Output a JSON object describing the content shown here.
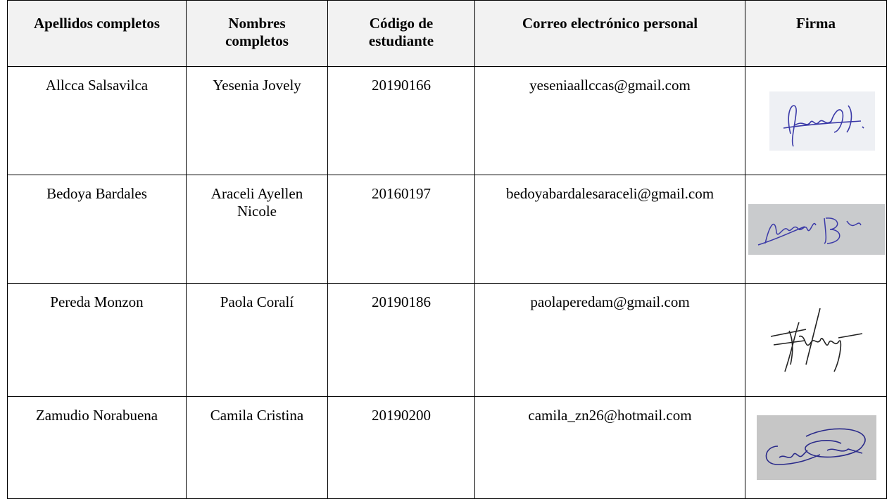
{
  "table": {
    "header": [
      "Apellidos completos",
      "Nombres\ncompletos",
      "Código de\nestudiante",
      "Correo electrónico personal",
      "Firma"
    ],
    "rows": [
      [
        "Allcca Salsavilca",
        "Yesenia Jovely",
        "20190166",
        "yeseniaallccas@gmail.com"
      ],
      [
        "Bedoya Bardales",
        "Araceli Ayellen\nNicole",
        "20160197",
        "bedoyabardalesaraceli@gmail.com"
      ],
      [
        "Pereda Monzon",
        "Paola Coralí",
        "20190186",
        "paolaperedam@gmail.com"
      ],
      [
        "Zamudio Norabuena",
        "Camila Cristina",
        "20190200",
        "camila_zn26@hotmail.com"
      ]
    ]
  }
}
